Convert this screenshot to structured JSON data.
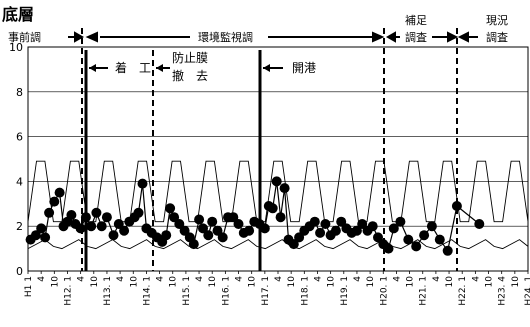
{
  "chart_data": {
    "type": "line",
    "title": "底層",
    "ylim": [
      0,
      10
    ],
    "yticks": [
      "0",
      "2",
      "4",
      "6",
      "8",
      "10"
    ],
    "grid": true,
    "xticks": [
      "H1 1",
      "4",
      "10",
      "H12. 1",
      "4",
      "10",
      "H13. 1",
      "4",
      "10",
      "H14. 1",
      "4",
      "10",
      "H15. 1",
      "4",
      "10",
      "H16. 1",
      "4",
      "10",
      "H17. 1",
      "4",
      "10",
      "H18. 1",
      "4",
      "10",
      "H19. 1",
      "4",
      "10",
      "H20. 1",
      "4",
      "10",
      "H21. 1",
      "4",
      "10",
      "H22. 1",
      "4",
      "10",
      "H23. 4",
      "10",
      "H24. 1"
    ],
    "periods": [
      "事前調",
      "環境監視調",
      "補足",
      "調査",
      "現況",
      "調査"
    ],
    "annotations": [
      "着　工",
      "防止膜",
      "撤　去",
      "開港"
    ],
    "upper_envelope": [
      2.2,
      4.9,
      4.9,
      2.2,
      2.2,
      4.9,
      4.9,
      2.2,
      2.2,
      4.9,
      4.9,
      2.2,
      2.2,
      4.9,
      4.9,
      2.2,
      2.2,
      4.9,
      4.9,
      2.2,
      2.2,
      4.9,
      4.9,
      2.2,
      2.2,
      4.9,
      4.9,
      2.2,
      2.2,
      4.9,
      4.9,
      2.2,
      2.2,
      4.9,
      4.9,
      2.2,
      2.2,
      4.9,
      4.9,
      2.2,
      2.2,
      4.9,
      4.9,
      2.2,
      2.2,
      4.9,
      4.9,
      2.2,
      2.2,
      4.9,
      4.9,
      2.2,
      2.2,
      4.9,
      4.9,
      2.2,
      2.2,
      4.9,
      4.9,
      2.2
    ],
    "lower_envelope": [
      1.0,
      1.2,
      1.4,
      1.1,
      1.0,
      1.2,
      1.4,
      1.1,
      1.0,
      1.2,
      1.4,
      1.1,
      1.0,
      1.2,
      1.4,
      1.1,
      1.0,
      1.2,
      1.4,
      1.1,
      1.0,
      1.2,
      1.4,
      1.1,
      1.0,
      1.2,
      1.4,
      1.1,
      1.0,
      1.2,
      1.4,
      1.1,
      1.0,
      1.2,
      1.4,
      1.1,
      1.0,
      1.2,
      1.4,
      1.1,
      1.0,
      1.2,
      1.4,
      1.1,
      1.0,
      1.2,
      1.4,
      1.1,
      1.0,
      1.2,
      1.4,
      1.1,
      1.0,
      1.2,
      1.4,
      1.1,
      1.0,
      1.2,
      1.4,
      1.1
    ],
    "observed": [
      [
        0.2,
        1.4
      ],
      [
        0.6,
        1.6
      ],
      [
        1.0,
        1.9
      ],
      [
        1.3,
        1.5
      ],
      [
        1.6,
        2.6
      ],
      [
        2.0,
        3.1
      ],
      [
        2.4,
        3.5
      ],
      [
        2.7,
        2.0
      ],
      [
        3.0,
        2.2
      ],
      [
        3.3,
        2.5
      ],
      [
        3.6,
        2.1
      ],
      [
        4.0,
        1.9
      ],
      [
        4.4,
        2.4
      ],
      [
        4.8,
        2.0
      ],
      [
        5.2,
        2.6
      ],
      [
        5.6,
        2.0
      ],
      [
        6.0,
        2.4
      ],
      [
        6.5,
        1.6
      ],
      [
        6.9,
        2.1
      ],
      [
        7.3,
        1.8
      ],
      [
        7.7,
        2.2
      ],
      [
        8.1,
        2.4
      ],
      [
        8.4,
        2.6
      ],
      [
        8.7,
        3.9
      ],
      [
        9.0,
        1.9
      ],
      [
        9.4,
        1.7
      ],
      [
        9.8,
        1.5
      ],
      [
        10.2,
        1.3
      ],
      [
        10.5,
        1.6
      ],
      [
        10.8,
        2.8
      ],
      [
        11.1,
        2.4
      ],
      [
        11.5,
        2.1
      ],
      [
        11.9,
        1.8
      ],
      [
        12.3,
        1.5
      ],
      [
        12.6,
        1.2
      ],
      [
        13.0,
        2.3
      ],
      [
        13.3,
        1.9
      ],
      [
        13.7,
        1.6
      ],
      [
        14.0,
        2.2
      ],
      [
        14.4,
        1.8
      ],
      [
        14.8,
        1.5
      ],
      [
        15.2,
        2.4
      ],
      [
        15.6,
        2.4
      ],
      [
        16.0,
        2.1
      ],
      [
        16.4,
        1.7
      ],
      [
        16.8,
        1.8
      ],
      [
        17.2,
        2.2
      ],
      [
        17.6,
        2.1
      ],
      [
        18.0,
        1.9
      ],
      [
        18.3,
        2.9
      ],
      [
        18.6,
        2.8
      ],
      [
        18.9,
        4.0
      ],
      [
        19.2,
        2.4
      ],
      [
        19.5,
        3.7
      ],
      [
        19.8,
        1.4
      ],
      [
        20.2,
        1.2
      ],
      [
        20.6,
        1.5
      ],
      [
        21.0,
        1.8
      ],
      [
        21.4,
        2.0
      ],
      [
        21.8,
        2.2
      ],
      [
        22.2,
        1.7
      ],
      [
        22.6,
        2.1
      ],
      [
        23.0,
        1.6
      ],
      [
        23.4,
        1.8
      ],
      [
        23.8,
        2.2
      ],
      [
        24.2,
        1.9
      ],
      [
        24.6,
        1.7
      ],
      [
        25.0,
        1.8
      ],
      [
        25.4,
        2.1
      ],
      [
        25.8,
        1.8
      ],
      [
        26.2,
        2.0
      ],
      [
        26.6,
        1.5
      ],
      [
        27.0,
        1.2
      ],
      [
        27.4,
        1.0
      ],
      [
        27.8,
        1.9
      ],
      [
        28.3,
        2.2
      ],
      [
        28.9,
        1.4
      ],
      [
        29.5,
        1.1
      ],
      [
        30.1,
        1.6
      ],
      [
        30.7,
        2.0
      ],
      [
        31.3,
        1.4
      ],
      [
        31.9,
        0.9
      ],
      [
        32.6,
        2.9
      ],
      [
        34.3,
        2.1
      ]
    ]
  }
}
